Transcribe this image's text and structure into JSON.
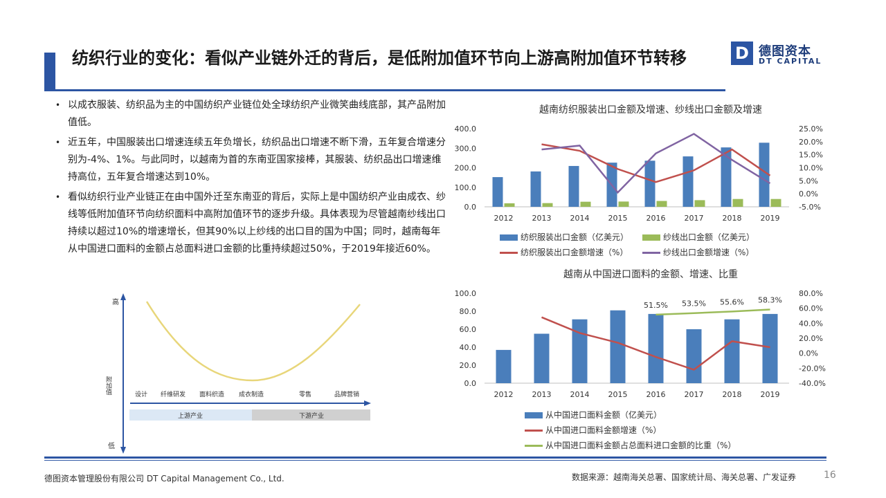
{
  "title": "纺织行业的变化：看似产业链外迁的背后，是低附加值环节向上游高附加值环节转移",
  "logo": {
    "mark": "D",
    "cn": "德图资本",
    "en": "DT CAPITAL"
  },
  "bullets": [
    "以成衣服装、纺织品为主的中国纺织产业链位处全球纺织产业微笑曲线底部，其产品附加值低。",
    "近五年，中国服装出口增速连续五年负增长，纺织品出口增速不断下滑，五年复合增速分别为-4%、1%。与此同时，以越南为首的东南亚国家接棒，其服装、纺织品出口增速维持高位，五年复合增速达到10%。",
    "看似纺织行业产业链正在由中国外迁至东南亚的背后，实际上是中国纺织产业由成衣、纱线等低附加值环节向纺织面料中高附加值环节的逐步升级。具体表现为尽管越南纱线出口持续以超过10%的增速增长，但其90%以上纱线的出口目的国为中国；同时，越南每年从中国进口面料的金额占总面料进口金额的比重持续超过50%，于2019年接近60%。"
  ],
  "smile_curve": {
    "y_high": "高",
    "y_mid": "附加值",
    "y_low": "低",
    "stages": [
      "设计",
      "纤维研发",
      "面料织造",
      "成衣制造",
      "零售",
      "品牌营销"
    ],
    "upstream": "上游产业",
    "downstream": "下游产业",
    "colors": {
      "curve": "#e8d67a",
      "axis": "#2c55a3",
      "upstream": "#dce8f5",
      "downstream": "#d0d0d0"
    }
  },
  "chart_data": [
    {
      "type": "bar",
      "title": "越南纺织服装出口金额及增速、纱线出口金额及增速",
      "categories": [
        "2012",
        "2013",
        "2014",
        "2015",
        "2016",
        "2017",
        "2018",
        "2019"
      ],
      "ylim": [
        0,
        400
      ],
      "yticks": [
        "400.0",
        "300.0",
        "200.0",
        "100.0",
        "0.0"
      ],
      "y2lim": [
        -5,
        25
      ],
      "y2ticks": [
        "25.0%",
        "20.0%",
        "15.0%",
        "10.0%",
        "5.0%",
        "0.0%",
        "-5.0%"
      ],
      "series": [
        {
          "name": "纺织服装出口金额（亿美元）",
          "kind": "bar",
          "color": "#4a7ebb",
          "values": [
            152,
            181,
            209,
            226,
            236,
            258,
            304,
            328
          ]
        },
        {
          "name": "纱线出口金额（亿美元）",
          "kind": "bar",
          "color": "#9bbb59",
          "values": [
            18,
            19,
            26,
            27,
            30,
            34,
            40,
            40
          ]
        },
        {
          "name": "纺织服装出口金额增速（%）",
          "kind": "line",
          "axis": "y2",
          "color": "#c0504d",
          "x_start": 1,
          "values": [
            null,
            19,
            16.5,
            9.5,
            4.5,
            9,
            17,
            7
          ]
        },
        {
          "name": "纱线出口金额增速（%）",
          "kind": "line",
          "axis": "y2",
          "color": "#8064a2",
          "values": [
            null,
            17,
            18.5,
            0.5,
            15.5,
            23,
            13,
            4
          ]
        }
      ]
    },
    {
      "type": "bar",
      "title": "越南从中国进口面料的金额、增速、比重",
      "categories": [
        "2012",
        "2013",
        "2014",
        "2015",
        "2016",
        "2017",
        "2018",
        "2019"
      ],
      "ylim": [
        0,
        100
      ],
      "yticks": [
        "100.0",
        "80.0",
        "60.0",
        "40.0",
        "20.0",
        "0.0"
      ],
      "y2lim": [
        -40,
        80
      ],
      "y2ticks": [
        "80.0%",
        "60.0%",
        "40.0%",
        "20.0%",
        "0.0%",
        "-20.0%",
        "-40.0%"
      ],
      "series": [
        {
          "name": "从中国进口面料金额（亿美元）",
          "kind": "bar",
          "color": "#4a7ebb",
          "values": [
            37,
            55,
            71,
            81,
            77,
            60,
            71,
            77
          ]
        },
        {
          "name": "从中国进口面料金额增速（%）",
          "kind": "line",
          "axis": "y2",
          "color": "#c0504d",
          "values": [
            null,
            48,
            27,
            14,
            -5,
            -22,
            16,
            8
          ]
        },
        {
          "name": "从中国进口面料金额占总面料进口金额的比重（%）",
          "kind": "line",
          "axis": "y2",
          "color": "#9bbb59",
          "values": [
            null,
            null,
            null,
            null,
            51.5,
            53.5,
            55.6,
            58.3
          ]
        }
      ],
      "share_labels": [
        "51.5%",
        "53.5%",
        "55.6%",
        "58.3%"
      ]
    }
  ],
  "footer": {
    "company": "德图资本管理股份有限公司 DT Capital Management Co., Ltd.",
    "source": "数据来源：越南海关总署、国家统计局、海关总署、广发证券",
    "page": "16"
  }
}
